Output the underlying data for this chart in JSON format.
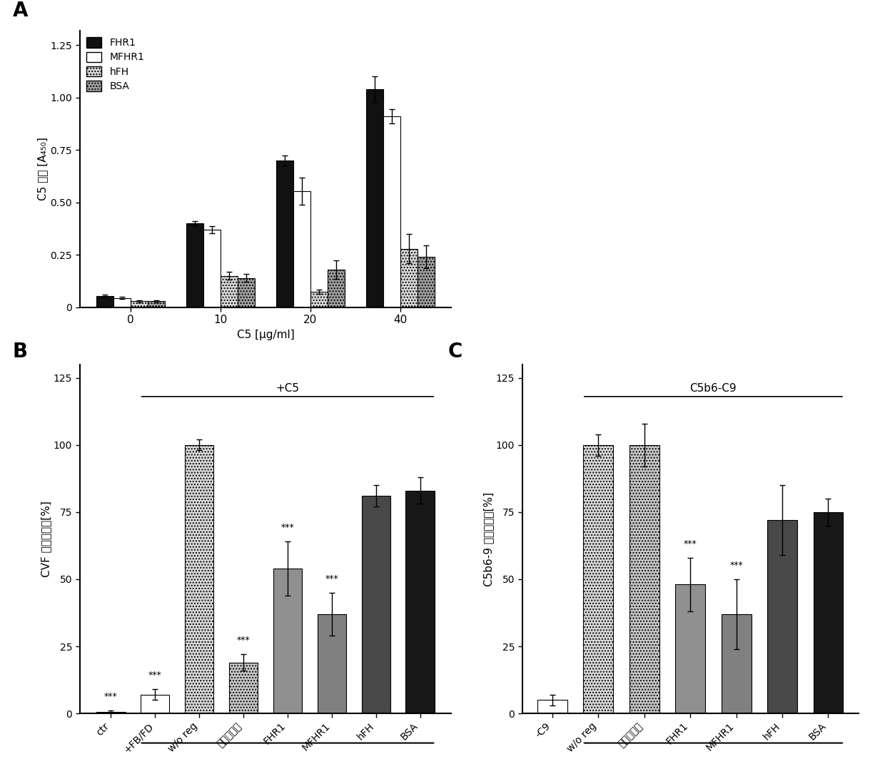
{
  "panel_A": {
    "groups": [
      0,
      10,
      20,
      40
    ],
    "FHR1": [
      0.055,
      0.4,
      0.7,
      1.04
    ],
    "MFHR1": [
      0.045,
      0.37,
      0.555,
      0.91
    ],
    "hFH": [
      0.03,
      0.15,
      0.075,
      0.28
    ],
    "BSA": [
      0.03,
      0.14,
      0.18,
      0.24
    ],
    "FHR1_err": [
      0.005,
      0.012,
      0.025,
      0.06
    ],
    "MFHR1_err": [
      0.005,
      0.018,
      0.065,
      0.035
    ],
    "hFH_err": [
      0.005,
      0.018,
      0.01,
      0.07
    ],
    "BSA_err": [
      0.005,
      0.018,
      0.045,
      0.055
    ],
    "ylabel": "C5 结合 [A₄₅₀]",
    "xlabel": "C5 [µg/ml]",
    "ylim": [
      0,
      1.25
    ],
    "yticks": [
      0.0,
      0.25,
      0.5,
      0.75,
      1.0,
      1.25
    ],
    "ytick_labels": [
      "0",
      "0.25",
      "0.50",
      "0.75",
      "1.00",
      "1.25"
    ]
  },
  "panel_B": {
    "labels": [
      "ctr",
      "+FB/FD",
      "w/o reg",
      "依库珠单抗",
      "FHR1",
      "MFHR1",
      "hFH",
      "BSA"
    ],
    "values": [
      0.5,
      7,
      100,
      19,
      54,
      37,
      81,
      83
    ],
    "errors": [
      0.5,
      2,
      2,
      3,
      10,
      8,
      4,
      5
    ],
    "ylabel": "CVF 诱导的裂解[%]",
    "ylim": [
      0,
      130
    ],
    "yticks": [
      0,
      25,
      50,
      75,
      100,
      125
    ],
    "ytick_labels": [
      "0",
      "25",
      "50",
      "75",
      "100",
      "125"
    ],
    "annotation": "+C5",
    "star_indices": [
      0,
      1,
      3,
      4,
      5
    ]
  },
  "panel_C": {
    "labels": [
      "-C9",
      "w/o reg",
      "依库珠单抗",
      "FHR1",
      "MFHR1",
      "hFH",
      "BSA"
    ],
    "values": [
      5,
      100,
      100,
      48,
      37,
      72,
      75
    ],
    "errors": [
      2,
      4,
      8,
      10,
      13,
      13,
      5
    ],
    "ylabel": "C5b6-9 诱导的裂解[%]",
    "ylim": [
      0,
      130
    ],
    "yticks": [
      0,
      25,
      50,
      75,
      100,
      125
    ],
    "ytick_labels": [
      "0",
      "25",
      "50",
      "75",
      "100",
      "125"
    ],
    "annotation": "C5b6-C9",
    "star_indices": [
      3,
      4
    ]
  },
  "background": "#ffffff"
}
